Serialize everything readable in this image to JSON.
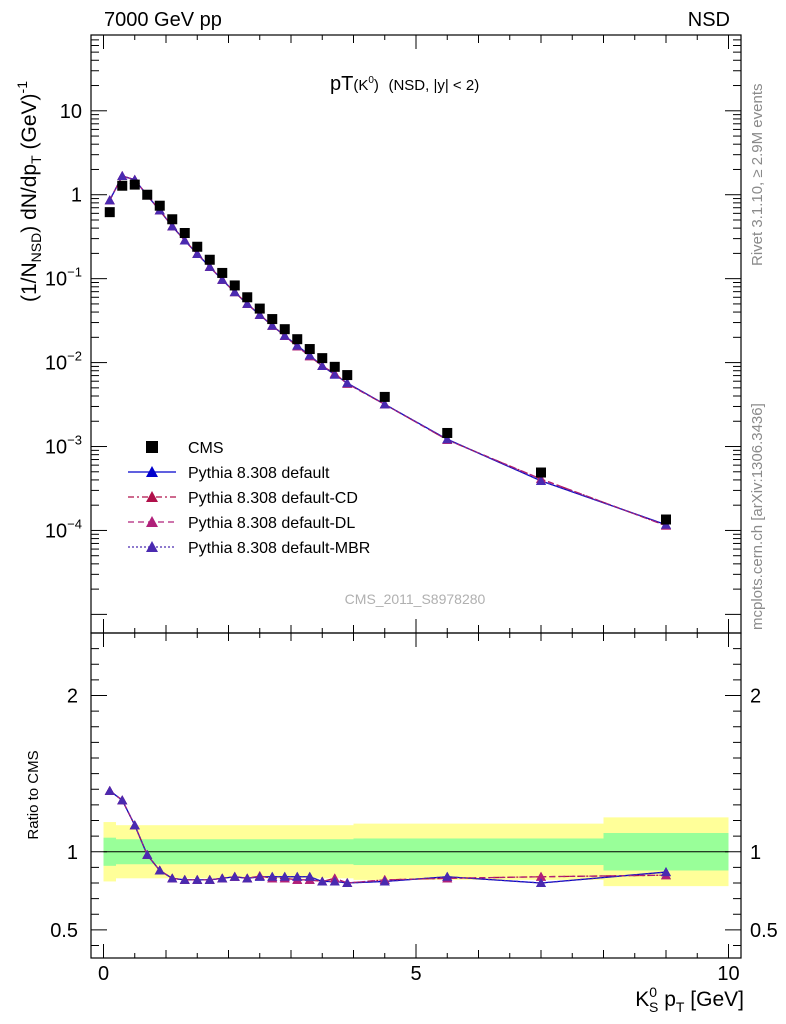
{
  "header": {
    "left_label": "7000 GeV pp",
    "right_label": "NSD"
  },
  "side_labels": {
    "rivet": "Rivet 3.1.10, ≥ 2.9M events",
    "mcplots": "mcplots.cern.ch [arXiv:1306.3436]"
  },
  "watermark": "CMS_2011_S8978280",
  "chart_data": [
    {
      "type": "scatter",
      "panel": "main",
      "title_main": "pT",
      "title_particle": "(K",
      "title_sup": "0",
      "title_close": ")",
      "title_sub": "(NSD, |y| < 2)",
      "ylabel_a": "(1/N",
      "ylabel_sub": "NSD",
      "ylabel_b": ") dN/dp",
      "ylabel_sub2": "T",
      "ylabel_c": " (GeV)",
      "ylabel_sup": "-1",
      "yscale": "log",
      "xlim": [
        -0.2,
        10.2
      ],
      "ylim": [
        6e-06,
        80
      ],
      "y_tick_labels": [
        {
          "value": 0.0001,
          "base": "10",
          "exp": "−4"
        },
        {
          "value": 0.001,
          "base": "10",
          "exp": "−3"
        },
        {
          "value": 0.01,
          "base": "10",
          "exp": "−2"
        },
        {
          "value": 0.1,
          "base": "10",
          "exp": "−1"
        },
        {
          "value": 1,
          "base": "1",
          "exp": ""
        },
        {
          "value": 10,
          "base": "10",
          "exp": ""
        }
      ],
      "legend_position": "bottom-left",
      "data": {
        "x": [
          0.1,
          0.3,
          0.5,
          0.7,
          0.9,
          1.1,
          1.3,
          1.5,
          1.7,
          1.9,
          2.1,
          2.3,
          2.5,
          2.7,
          2.9,
          3.1,
          3.3,
          3.5,
          3.7,
          3.9,
          4.5,
          5.5,
          7.0,
          9.0
        ],
        "series": [
          {
            "name": "CMS",
            "style": "marker-square",
            "color": "#000000",
            "values": [
              0.62,
              1.28,
              1.32,
              1.0,
              0.74,
              0.51,
              0.35,
              0.24,
              0.168,
              0.117,
              0.083,
              0.06,
              0.044,
              0.033,
              0.025,
              0.019,
              0.0145,
              0.0113,
              0.0089,
              0.0071,
              0.0039,
              0.00145,
              0.00049,
              0.000135
            ]
          },
          {
            "name": "Pythia 8.308 default",
            "style": "solid",
            "color": "#0000cc",
            "values": [
              0.86,
              1.67,
              1.51,
              0.98,
              0.65,
              0.42,
              0.285,
              0.197,
              0.138,
              0.097,
              0.069,
              0.05,
              0.037,
              0.0276,
              0.0209,
              0.0159,
              0.0122,
              0.0091,
              0.0072,
              0.0057,
              0.00318,
              0.00122,
              0.00039,
              0.000117
            ]
          },
          {
            "name": "Pythia 8.308 default-CD",
            "style": "dash-dot",
            "color": "#b0104a",
            "values": [
              0.86,
              1.67,
              1.51,
              0.98,
              0.65,
              0.42,
              0.285,
              0.197,
              0.138,
              0.097,
              0.069,
              0.05,
              0.0372,
              0.0275,
              0.0208,
              0.0156,
              0.0119,
              0.0091,
              0.0074,
              0.0056,
              0.00318,
              0.0012,
              0.00041,
              0.000114
            ]
          },
          {
            "name": "Pythia 8.308 default-DL",
            "style": "dashed",
            "color": "#b0207a",
            "values": [
              0.86,
              1.67,
              1.51,
              0.98,
              0.65,
              0.42,
              0.285,
              0.197,
              0.138,
              0.097,
              0.069,
              0.05,
              0.0372,
              0.0275,
              0.0208,
              0.0156,
              0.0119,
              0.0091,
              0.0074,
              0.0056,
              0.00318,
              0.0012,
              0.00041,
              0.000114
            ]
          },
          {
            "name": "Pythia 8.308 default-MBR",
            "style": "dotted",
            "color": "#4a2ab0",
            "values": [
              0.86,
              1.67,
              1.51,
              0.98,
              0.65,
              0.42,
              0.285,
              0.197,
              0.138,
              0.097,
              0.069,
              0.05,
              0.037,
              0.0276,
              0.0209,
              0.0159,
              0.0122,
              0.0091,
              0.0072,
              0.0057,
              0.00318,
              0.00122,
              0.00039,
              0.000117
            ]
          }
        ]
      }
    },
    {
      "type": "line",
      "panel": "ratio",
      "ylabel": "Ratio to CMS",
      "xlabel_a": "K",
      "xlabel_sup": "0",
      "xlabel_sub": "S",
      "xlabel_b": " p",
      "xlabel_sub2": "T",
      "xlabel_c": " [GeV]",
      "xlim": [
        -0.2,
        10.2
      ],
      "ylim": [
        0.32,
        2.4
      ],
      "x_tick_labels": [
        {
          "value": 0,
          "label": "0"
        },
        {
          "value": 5,
          "label": "5"
        },
        {
          "value": 10,
          "label": "10"
        }
      ],
      "y_tick_labels": [
        {
          "value": 0.5,
          "label": "0.5"
        },
        {
          "value": 1,
          "label": "1"
        },
        {
          "value": 2,
          "label": "2"
        }
      ],
      "uncertainty_bands": {
        "edges": [
          0.0,
          0.2,
          0.4,
          0.6,
          0.8,
          1.0,
          1.2,
          1.4,
          1.6,
          1.8,
          2.0,
          2.2,
          2.4,
          2.6,
          2.8,
          3.0,
          3.2,
          3.4,
          3.6,
          3.8,
          4.0,
          5.0,
          6.0,
          8.0,
          10.0
        ],
        "stat_syst_outer": [
          0.19,
          0.17,
          0.17,
          0.17,
          0.17,
          0.17,
          0.17,
          0.17,
          0.17,
          0.17,
          0.17,
          0.17,
          0.17,
          0.17,
          0.17,
          0.17,
          0.17,
          0.17,
          0.17,
          0.17,
          0.18,
          0.18,
          0.18,
          0.22
        ],
        "inner": [
          0.09,
          0.08,
          0.08,
          0.08,
          0.08,
          0.08,
          0.08,
          0.08,
          0.08,
          0.08,
          0.08,
          0.08,
          0.08,
          0.08,
          0.08,
          0.08,
          0.08,
          0.08,
          0.08,
          0.08,
          0.085,
          0.085,
          0.085,
          0.12
        ],
        "outer_color": "#ffff99",
        "inner_color": "#99ff99"
      },
      "data": {
        "x": [
          0.1,
          0.3,
          0.5,
          0.7,
          0.9,
          1.1,
          1.3,
          1.5,
          1.7,
          1.9,
          2.1,
          2.3,
          2.5,
          2.7,
          2.9,
          3.1,
          3.3,
          3.5,
          3.7,
          3.9,
          4.5,
          5.5,
          7.0,
          9.0
        ],
        "series": [
          {
            "name": "Pythia 8.308 default",
            "color": "#0000cc",
            "values": [
              1.39,
              1.33,
              1.17,
              0.98,
              0.88,
              0.83,
              0.82,
              0.82,
              0.82,
              0.83,
              0.84,
              0.83,
              0.84,
              0.84,
              0.84,
              0.84,
              0.84,
              0.81,
              0.81,
              0.8,
              0.81,
              0.84,
              0.8,
              0.87
            ]
          },
          {
            "name": "Pythia 8.308 default-CD",
            "color": "#b0104a",
            "values": [
              1.39,
              1.33,
              1.17,
              0.98,
              0.88,
              0.83,
              0.82,
              0.82,
              0.82,
              0.83,
              0.84,
              0.83,
              0.845,
              0.83,
              0.83,
              0.82,
              0.82,
              0.81,
              0.83,
              0.8,
              0.82,
              0.83,
              0.84,
              0.85
            ]
          },
          {
            "name": "Pythia 8.308 default-DL",
            "color": "#b0207a",
            "values": [
              1.39,
              1.33,
              1.17,
              0.98,
              0.88,
              0.83,
              0.82,
              0.82,
              0.82,
              0.83,
              0.84,
              0.83,
              0.845,
              0.83,
              0.83,
              0.82,
              0.82,
              0.81,
              0.83,
              0.8,
              0.82,
              0.83,
              0.84,
              0.85
            ]
          },
          {
            "name": "Pythia 8.308 default-MBR",
            "color": "#4a2ab0",
            "values": [
              1.39,
              1.33,
              1.17,
              0.98,
              0.88,
              0.83,
              0.82,
              0.82,
              0.82,
              0.83,
              0.84,
              0.83,
              0.84,
              0.84,
              0.84,
              0.84,
              0.84,
              0.81,
              0.81,
              0.8,
              0.81,
              0.84,
              0.8,
              0.87
            ]
          }
        ]
      }
    }
  ]
}
